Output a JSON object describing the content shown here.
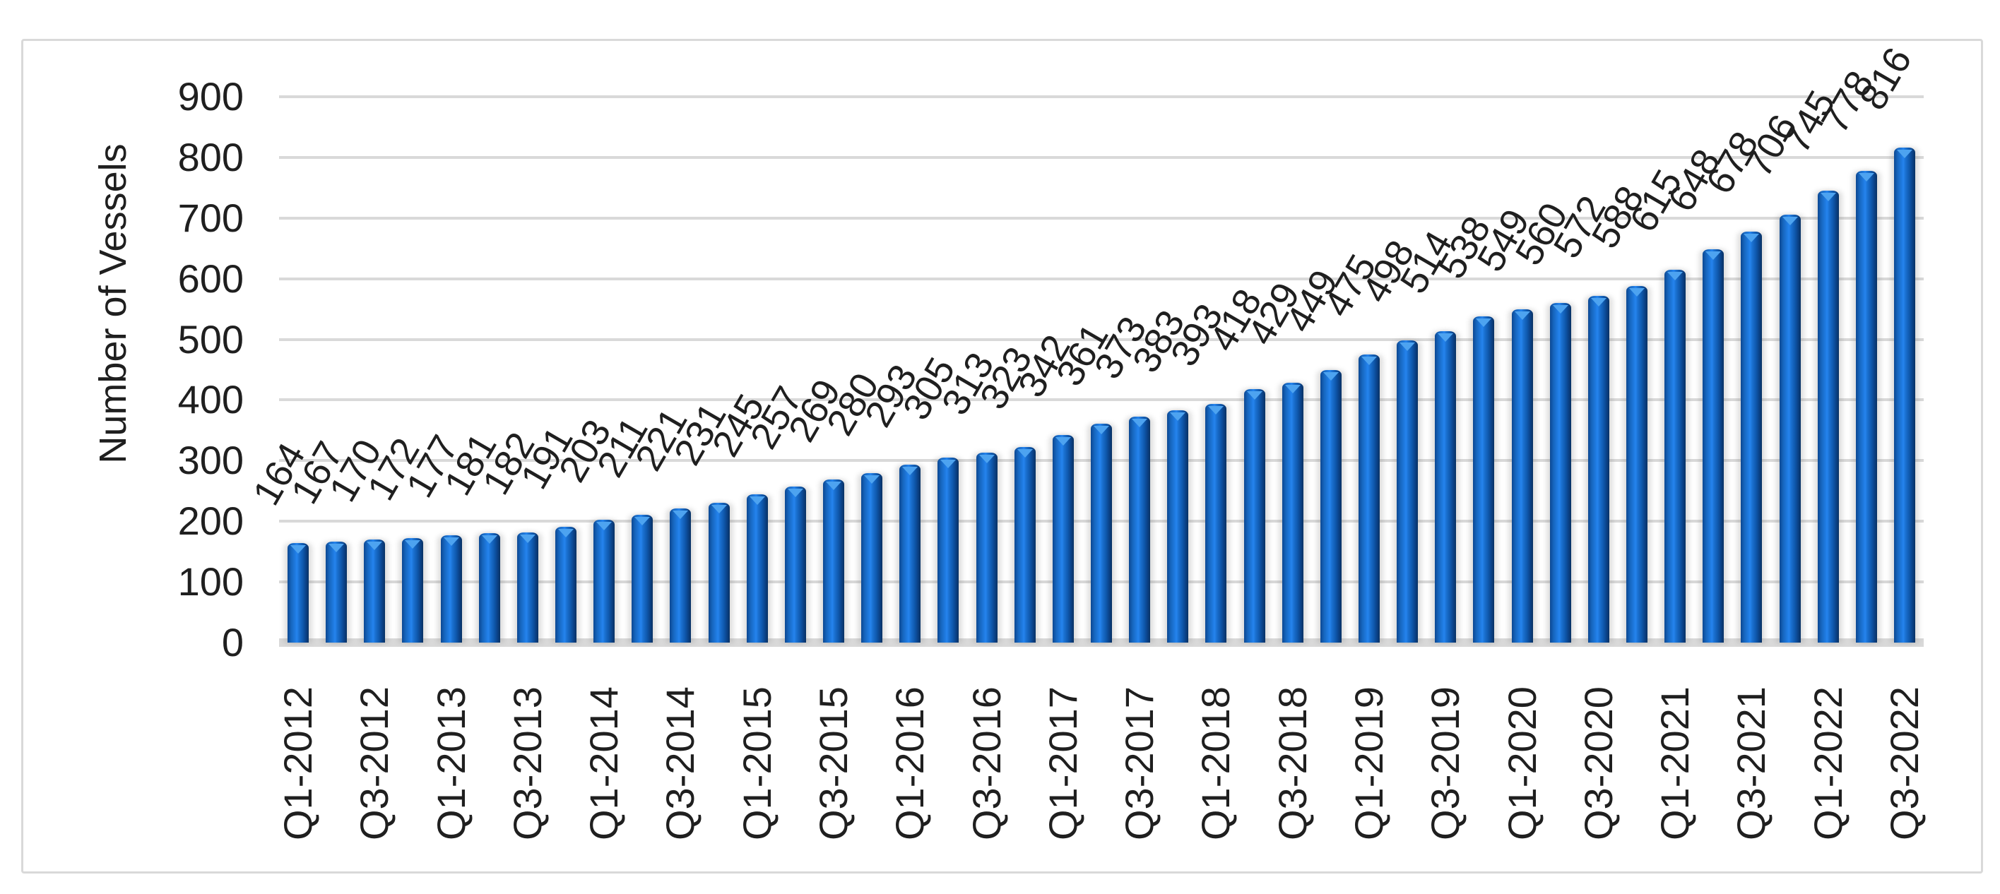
{
  "chart_data": {
    "type": "bar",
    "title": "",
    "xlabel": "",
    "ylabel": "Number of Vessels",
    "ylim": [
      0,
      900
    ],
    "ytick_step": 100,
    "ytick_labels": [
      "0",
      "100",
      "200",
      "300",
      "400",
      "500",
      "600",
      "700",
      "800",
      "900"
    ],
    "grid": true,
    "legend": false,
    "data_labels_shown": true,
    "values": [
      164,
      167,
      170,
      172,
      177,
      181,
      182,
      191,
      203,
      211,
      221,
      231,
      245,
      257,
      269,
      280,
      293,
      305,
      313,
      323,
      342,
      361,
      373,
      383,
      393,
      418,
      429,
      449,
      475,
      498,
      514,
      538,
      549,
      560,
      572,
      588,
      615,
      648,
      678,
      706,
      745,
      778,
      816
    ],
    "x_tick_labels": [
      "Q1-2012",
      "Q3-2012",
      "Q1-2013",
      "Q3-2013",
      "Q1-2014",
      "Q3-2014",
      "Q1-2015",
      "Q3-2015",
      "Q1-2016",
      "Q3-2016",
      "Q1-2017",
      "Q3-2017",
      "Q1-2018",
      "Q3-2018",
      "Q1-2019",
      "Q3-2019",
      "Q1-2020",
      "Q3-2020",
      "Q1-2021",
      "Q3-2021",
      "Q1-2022",
      "Q3-2022"
    ],
    "x_tick_every": 2,
    "colors": {
      "bar_main": "#1f7ae0",
      "bar_dark": "#0c4892",
      "bar_darker": "#093263",
      "bar_highlight": "#4da3f0",
      "gridline": "#d9d9d9",
      "axis_band": "#d9d9d9",
      "frame_border": "#d9d9d9",
      "text": "#1f1f1f"
    }
  }
}
